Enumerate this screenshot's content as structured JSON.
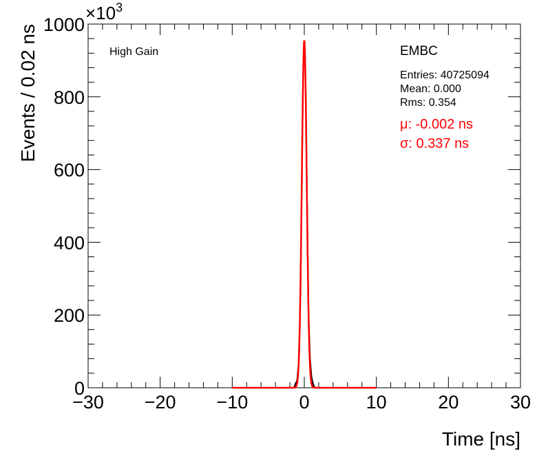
{
  "chart_data": {
    "type": "line",
    "xlabel": "Time [ns]",
    "ylabel": "Events / 0.02 ns",
    "y_multiplier": "×10",
    "y_multiplier_exp": "3",
    "xlim": [
      -30,
      30
    ],
    "ylim": [
      0,
      1000
    ],
    "x_ticks": [
      -30,
      -20,
      -10,
      0,
      10,
      20,
      30
    ],
    "y_ticks": [
      0,
      200,
      400,
      600,
      800,
      1000
    ],
    "grid": false,
    "labels": {
      "gain": "High Gain",
      "region": "EMBC",
      "entries": "Entries: 40725094",
      "mean": "Mean: 0.000",
      "rms": "Rms: 0.354",
      "mu": "μ: -0.002 ns",
      "sigma": "σ: 0.337 ns"
    },
    "series": [
      {
        "kind": "histogram",
        "color": "#000000",
        "x": [
          -1.4,
          -1.2,
          -1.0,
          -0.8,
          -0.6,
          -0.5,
          -0.4,
          -0.3,
          -0.2,
          -0.1,
          0.0,
          0.1,
          0.2,
          0.3,
          0.4,
          0.5,
          0.6,
          0.8,
          1.0,
          1.2,
          1.4
        ],
        "values": [
          1,
          12,
          20,
          65,
          190,
          320,
          480,
          640,
          800,
          920,
          950,
          920,
          810,
          650,
          490,
          330,
          200,
          80,
          30,
          12,
          2
        ]
      },
      {
        "kind": "gaussian-fit",
        "color": "#ff0000",
        "amplitude": 955,
        "mu": -0.002,
        "sigma": 0.337,
        "x_range": [
          -10,
          10
        ]
      }
    ]
  },
  "colors": {
    "fit": "#ff0000",
    "histogram": "#000000",
    "axis": "#000000"
  }
}
